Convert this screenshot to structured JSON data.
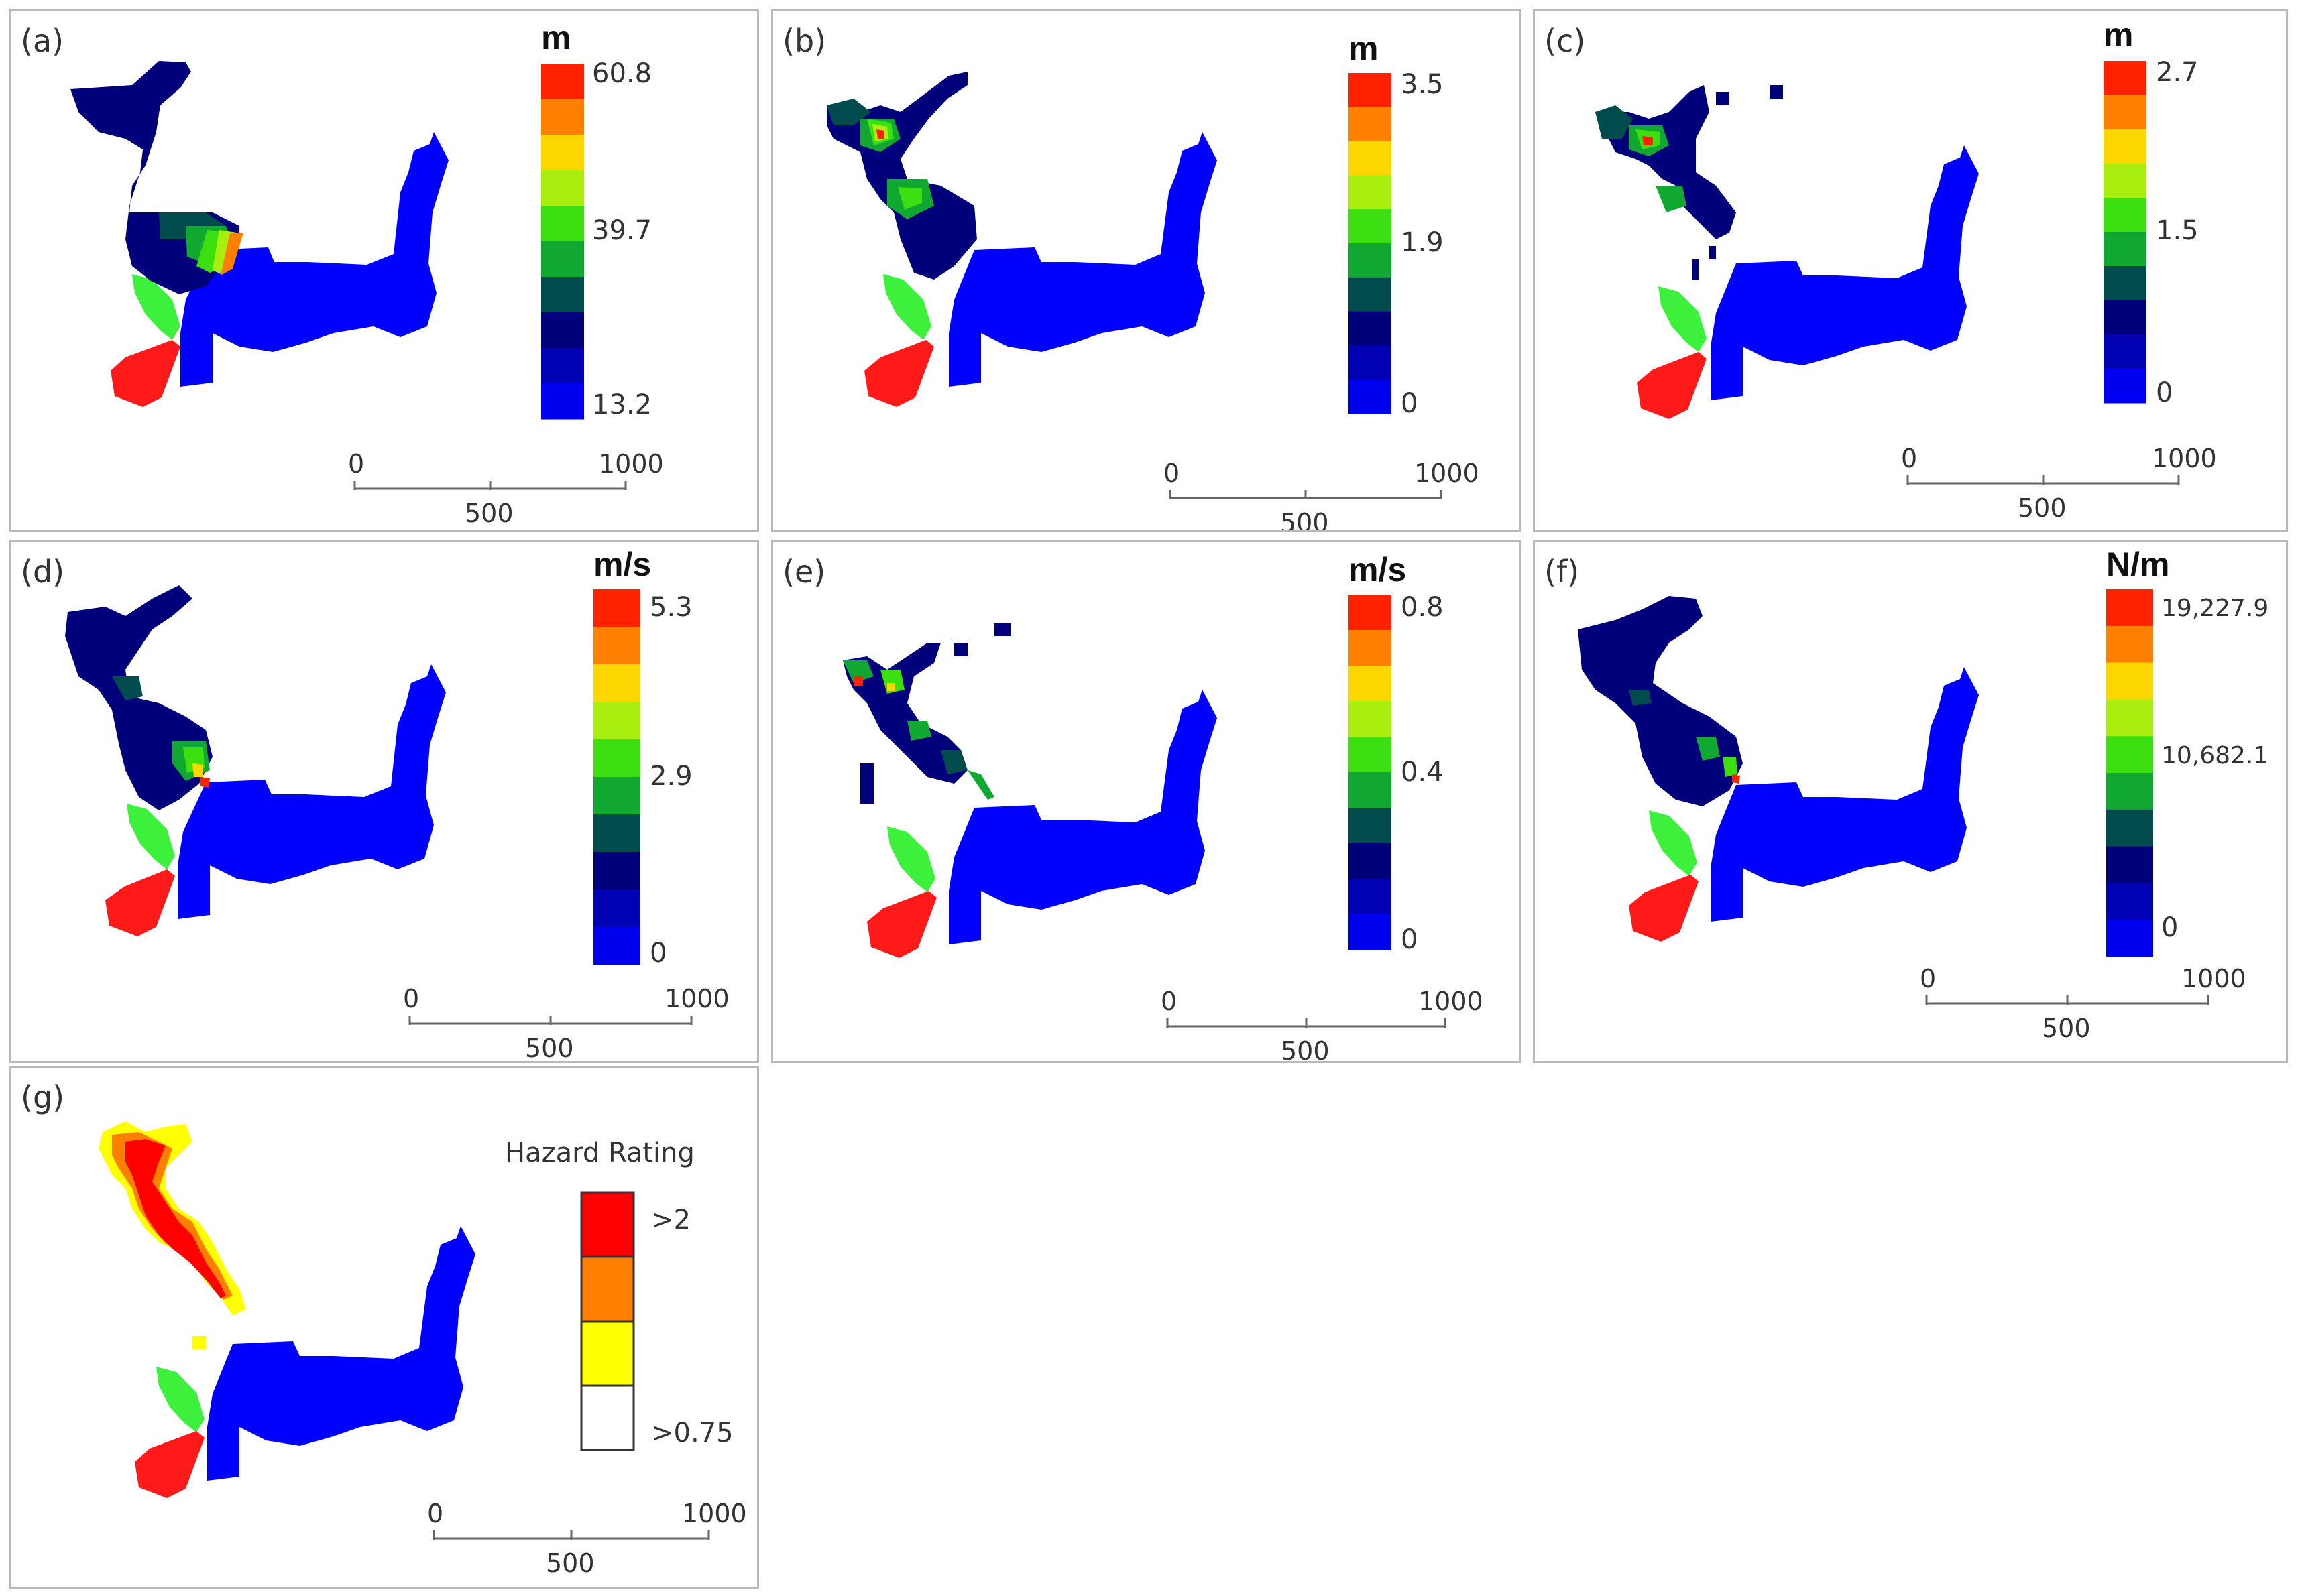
{
  "panels": [
    {
      "label": "(a)",
      "unit": "m",
      "ticks": [
        "60.8",
        "39.7",
        "13.2"
      ]
    },
    {
      "label": "(b)",
      "unit": "m",
      "ticks": [
        "3.5",
        "1.9",
        "0"
      ]
    },
    {
      "label": "(c)",
      "unit": "m",
      "ticks": [
        "2.7",
        "1.5",
        "0"
      ]
    },
    {
      "label": "(d)",
      "unit": "m/s",
      "ticks": [
        "5.3",
        "2.9",
        "0"
      ]
    },
    {
      "label": "(e)",
      "unit": "m/s",
      "ticks": [
        "0.8",
        "0.4",
        "0"
      ]
    },
    {
      "label": "(f)",
      "unit": "N/m",
      "ticks": [
        "19,227.9",
        "10,682.1",
        "0"
      ]
    },
    {
      "label": "(g)",
      "unit": "Hazard Rating",
      "ticks": [
        ">2",
        ">0.75"
      ]
    }
  ],
  "scalebar": {
    "start": "0",
    "mid": "500",
    "end": "1000"
  },
  "colors": {
    "ramp": [
      "#ff2200",
      "#ff7f00",
      "#ffd700",
      "#aaee10",
      "#3ce010",
      "#10a830",
      "#004c4c",
      "#00007a",
      "#0000b4",
      "#0000f0"
    ],
    "hazard": [
      "#ff0000",
      "#ff8000",
      "#ffff00",
      "#ffffff"
    ],
    "lake": "#0000ff",
    "green_zone": "#3cf03c",
    "red_zone": "#ff1a1a"
  }
}
